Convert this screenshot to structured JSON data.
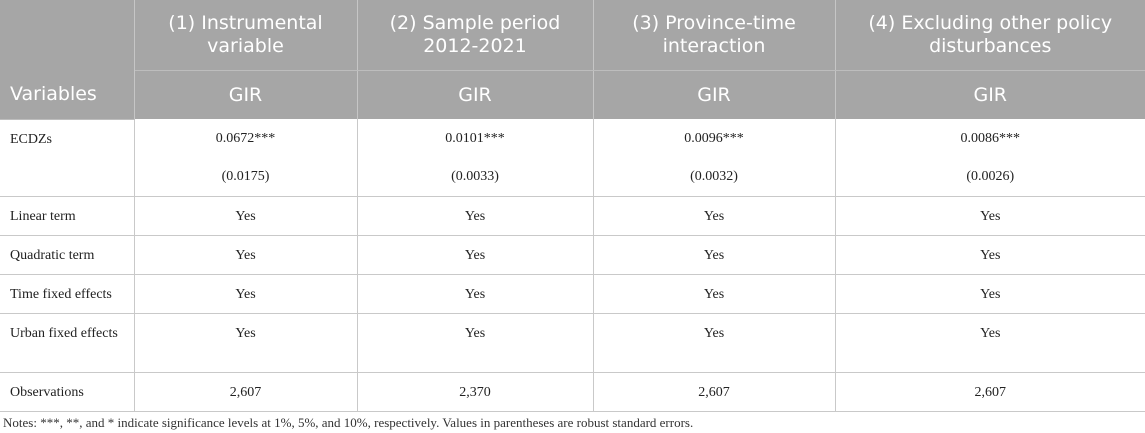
{
  "header": {
    "variables_label": "Variables",
    "columns": [
      {
        "title": "(1) Instrumental variable",
        "dep_var": "GIR"
      },
      {
        "title": "(2) Sample period 2012-2021",
        "dep_var": "GIR"
      },
      {
        "title": "(3) Province-time interaction",
        "dep_var": "GIR"
      },
      {
        "title": "(4) Excluding other policy disturbances",
        "dep_var": "GIR"
      }
    ]
  },
  "rows": {
    "ecdzs": {
      "label": "ECDZs",
      "coef": [
        "0.0672***",
        "0.0101***",
        "0.0096***",
        "0.0086***"
      ],
      "se": [
        "(0.0175)",
        "(0.0033)",
        "(0.0032)",
        "(0.0026)"
      ]
    },
    "linear": {
      "label": "Linear term",
      "values": [
        "Yes",
        "Yes",
        "Yes",
        "Yes"
      ]
    },
    "quadratic": {
      "label": "Quadratic term",
      "values": [
        "Yes",
        "Yes",
        "Yes",
        "Yes"
      ]
    },
    "time_fe": {
      "label": "Time fixed effects",
      "values": [
        "Yes",
        "Yes",
        "Yes",
        "Yes"
      ]
    },
    "urban_fe": {
      "label": "Urban fixed effects",
      "values": [
        "Yes",
        "Yes",
        "Yes",
        "Yes"
      ]
    },
    "obs": {
      "label": "Observations",
      "values": [
        "2,607",
        "2,370",
        "2,607",
        "2,607"
      ]
    }
  },
  "notes": "Notes: ***, **, and * indicate significance levels at 1%, 5%, and 10%, respectively. Values in parentheses are robust standard errors."
}
